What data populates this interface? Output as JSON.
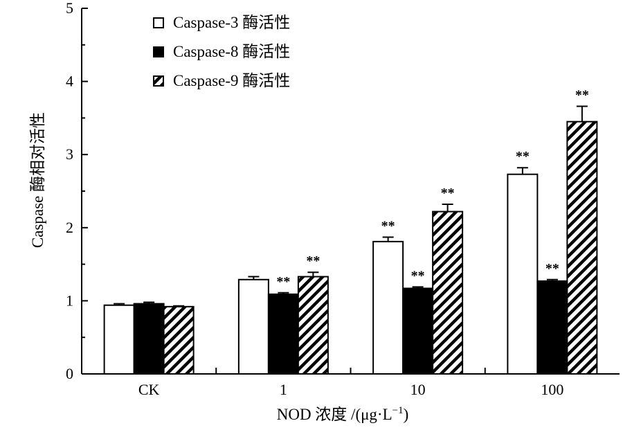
{
  "chart_data": {
    "type": "bar",
    "xlabel_prefix": "NOD 浓度 /(μg·L",
    "xlabel_exp": "−1",
    "xlabel_suffix": ")",
    "ylabel": "Caspase 酶相对活性",
    "ylim": [
      0,
      5
    ],
    "yticks": [
      0,
      1,
      2,
      3,
      4,
      5
    ],
    "categories": [
      "CK",
      "1",
      "10",
      "100"
    ],
    "series": [
      {
        "name": "Caspase-3 酶活性",
        "fill": "white",
        "values": [
          0.94,
          1.29,
          1.81,
          2.73
        ],
        "errors": [
          0.02,
          0.04,
          0.06,
          0.09
        ],
        "significance": [
          "",
          "",
          "**",
          "**"
        ]
      },
      {
        "name": "Caspase-8 酶活性",
        "fill": "black",
        "values": [
          0.96,
          1.09,
          1.17,
          1.27
        ],
        "errors": [
          0.02,
          0.02,
          0.02,
          0.02
        ],
        "significance": [
          "",
          "**",
          "**",
          "**"
        ]
      },
      {
        "name": "Caspase-9 酶活性",
        "fill": "hatch",
        "values": [
          0.92,
          1.33,
          2.22,
          3.45
        ],
        "errors": [
          0.01,
          0.06,
          0.1,
          0.21
        ],
        "significance": [
          "",
          "**",
          "**",
          "**"
        ]
      }
    ],
    "colors": {
      "axis": "#000000",
      "solid": "#000000",
      "hollow": "#ffffff"
    }
  }
}
